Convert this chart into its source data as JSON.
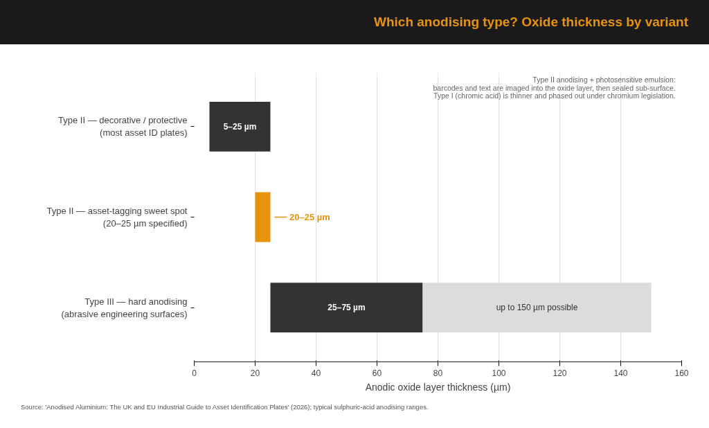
{
  "chart_data": {
    "type": "bar",
    "orientation": "horizontal",
    "title": "Which anodising type? Oxide thickness by variant",
    "xlabel": "Anodic oxide layer thickness (µm)",
    "categories": [
      "Type II — decorative / protective\n(most asset ID plates)",
      "Type II — asset-tagging sweet spot\n(20–25 µm specified)",
      "Type III — hard anodising\n(abrasive engineering surfaces)"
    ],
    "series": [
      {
        "colors": [
          "#333333",
          "#e8930c",
          "#333333"
        ],
        "base": [
          5,
          20,
          25
        ],
        "values": [
          20,
          5,
          50
        ],
        "value_labels": [
          "5–25 µm",
          "20–25 µm",
          "25–75 µm"
        ]
      },
      {
        "color": "#dcdcdc",
        "base": [
          null,
          null,
          75
        ],
        "values": [
          null,
          null,
          75
        ],
        "value_labels": [
          null,
          null,
          "up to 150 µm possible"
        ]
      }
    ],
    "xlim": [
      0,
      160
    ],
    "xticks": [
      0,
      20,
      40,
      60,
      80,
      100,
      120,
      140,
      160
    ],
    "grid": "x",
    "annotations": [
      "Type II anodising + photosensitive emulsion:",
      "barcodes and text are imaged into the oxide layer, then sealed sub-surface.",
      "Type I (chromic acid) is thinner and phased out under chromium legislation.",
      "Source: 'Anodised Aluminium: The UK and EU Industrial Guide to Asset Identification Plates' (2026); typical sulphuric-acid anodising ranges."
    ]
  }
}
